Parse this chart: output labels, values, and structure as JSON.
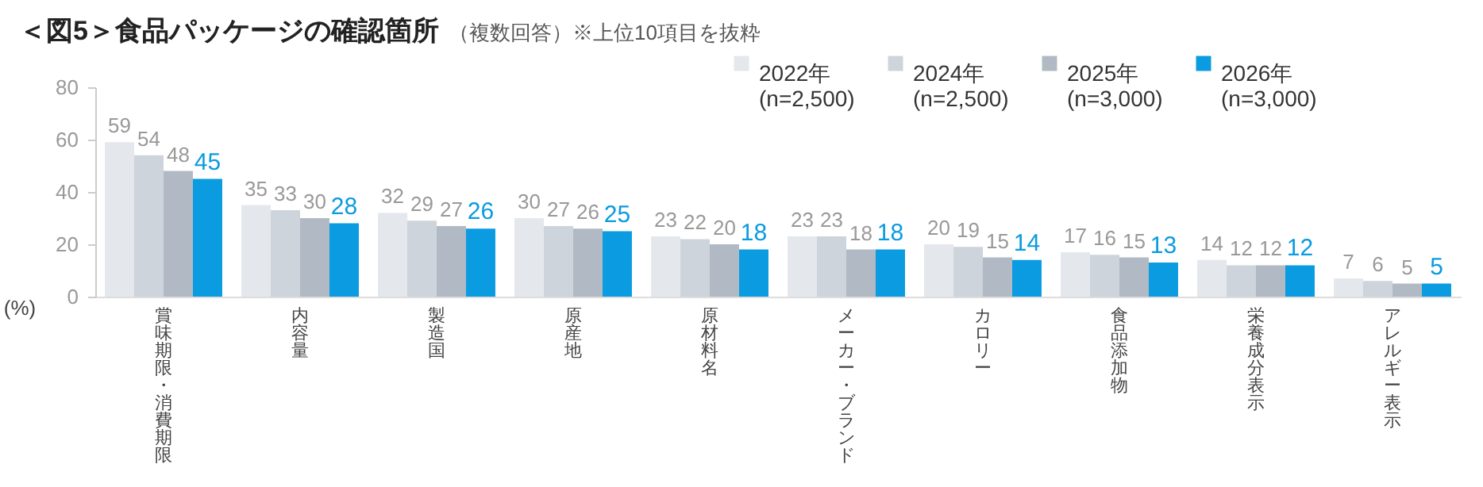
{
  "chart_data": {
    "type": "bar",
    "title": "＜図5＞食品パッケージの確認箇所",
    "subtitle": "（複数回答）※上位10項目を抜粋",
    "ylabel": "(%)",
    "categories": [
      "賞味期限・消費期限",
      "内容量",
      "製造国",
      "原産地",
      "原材料名",
      "メーカー・ブランド",
      "カロリー",
      "食品添加物",
      "栄養成分表示",
      "アレルギー表示"
    ],
    "series": [
      {
        "name": "2022年 (n=2,500)",
        "color": "#e4e8ec",
        "values": [
          59,
          35,
          32,
          30,
          23,
          23,
          20,
          17,
          14,
          7
        ]
      },
      {
        "name": "2024年 (n=2,500)",
        "color": "#cdd4db",
        "values": [
          54,
          33,
          29,
          27,
          22,
          23,
          19,
          16,
          12,
          6
        ]
      },
      {
        "name": "2025年 (n=3,000)",
        "color": "#b1bac4",
        "values": [
          48,
          30,
          27,
          26,
          20,
          18,
          15,
          15,
          12,
          5
        ]
      },
      {
        "name": "2026年 (n=3,000)",
        "color": "#0a9be0",
        "values": [
          45,
          28,
          26,
          25,
          18,
          18,
          14,
          13,
          12,
          5
        ]
      }
    ],
    "ylim": [
      0,
      80
    ],
    "yticks": [
      0,
      20,
      40,
      60,
      80
    ],
    "grid": false,
    "legend": "top right",
    "data_labels": true
  }
}
